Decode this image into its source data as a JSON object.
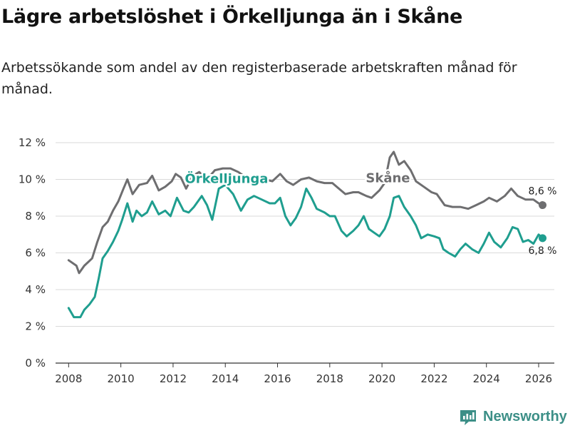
{
  "title": "Lägre arbetslöshet i Örkelljunga än i Skåne",
  "subtitle": "Arbetssökande som andel av den registerbaserade arbetskraften månad för månad.",
  "brand": {
    "name": "Newsworthy",
    "icon": "newsworthy-logo-icon",
    "color": "#3c8f87"
  },
  "chart_data": {
    "type": "line",
    "title": "Lägre arbetslöshet i Örkelljunga än i Skåne",
    "xlabel": "",
    "ylabel": "",
    "xlim": [
      2007.5,
      2026.6
    ],
    "ylim": [
      0,
      12
    ],
    "y_ticks": [
      0,
      2,
      4,
      6,
      8,
      10,
      12
    ],
    "y_tick_labels": [
      "0 %",
      "2 %",
      "4 %",
      "6 %",
      "8 %",
      "10 %",
      "12 %"
    ],
    "x_ticks": [
      2008,
      2010,
      2012,
      2014,
      2016,
      2018,
      2020,
      2022,
      2024,
      2026
    ],
    "x_tick_labels": [
      "2008",
      "2010",
      "2012",
      "2014",
      "2016",
      "2018",
      "2020",
      "2022",
      "2024",
      "2026"
    ],
    "grid": "horizontal",
    "series": [
      {
        "name": "Skåne",
        "color": "#6e6e70",
        "end_label": "8,6 %",
        "points": [
          [
            2008.0,
            5.6
          ],
          [
            2008.3,
            5.3
          ],
          [
            2008.4,
            4.9
          ],
          [
            2008.6,
            5.3
          ],
          [
            2008.9,
            5.7
          ],
          [
            2009.1,
            6.6
          ],
          [
            2009.3,
            7.4
          ],
          [
            2009.5,
            7.7
          ],
          [
            2009.7,
            8.3
          ],
          [
            2009.9,
            8.8
          ],
          [
            2010.1,
            9.5
          ],
          [
            2010.25,
            10.0
          ],
          [
            2010.45,
            9.2
          ],
          [
            2010.7,
            9.7
          ],
          [
            2011.0,
            9.8
          ],
          [
            2011.2,
            10.2
          ],
          [
            2011.45,
            9.4
          ],
          [
            2011.7,
            9.6
          ],
          [
            2011.95,
            9.9
          ],
          [
            2012.1,
            10.3
          ],
          [
            2012.3,
            10.1
          ],
          [
            2012.5,
            9.5
          ],
          [
            2012.75,
            10.2
          ],
          [
            2013.0,
            10.4
          ],
          [
            2013.3,
            10.0
          ],
          [
            2013.6,
            10.5
          ],
          [
            2013.9,
            10.6
          ],
          [
            2014.2,
            10.6
          ],
          [
            2014.5,
            10.4
          ],
          [
            2014.8,
            10.1
          ],
          [
            2015.0,
            9.9
          ],
          [
            2015.3,
            9.8
          ],
          [
            2015.5,
            10.0
          ],
          [
            2015.8,
            9.9
          ],
          [
            2016.1,
            10.3
          ],
          [
            2016.35,
            9.9
          ],
          [
            2016.6,
            9.7
          ],
          [
            2016.9,
            10.0
          ],
          [
            2017.2,
            10.1
          ],
          [
            2017.5,
            9.9
          ],
          [
            2017.8,
            9.8
          ],
          [
            2018.1,
            9.8
          ],
          [
            2018.35,
            9.5
          ],
          [
            2018.6,
            9.2
          ],
          [
            2018.9,
            9.3
          ],
          [
            2019.1,
            9.3
          ],
          [
            2019.4,
            9.1
          ],
          [
            2019.6,
            9.0
          ],
          [
            2019.9,
            9.4
          ],
          [
            2020.1,
            9.8
          ],
          [
            2020.3,
            11.2
          ],
          [
            2020.45,
            11.5
          ],
          [
            2020.65,
            10.8
          ],
          [
            2020.85,
            11.0
          ],
          [
            2021.1,
            10.5
          ],
          [
            2021.3,
            9.9
          ],
          [
            2021.6,
            9.6
          ],
          [
            2021.9,
            9.3
          ],
          [
            2022.1,
            9.2
          ],
          [
            2022.4,
            8.6
          ],
          [
            2022.7,
            8.5
          ],
          [
            2023.0,
            8.5
          ],
          [
            2023.3,
            8.4
          ],
          [
            2023.6,
            8.6
          ],
          [
            2023.9,
            8.8
          ],
          [
            2024.1,
            9.0
          ],
          [
            2024.4,
            8.8
          ],
          [
            2024.7,
            9.1
          ],
          [
            2024.95,
            9.5
          ],
          [
            2025.2,
            9.1
          ],
          [
            2025.5,
            8.9
          ],
          [
            2025.8,
            8.9
          ],
          [
            2026.0,
            8.7
          ],
          [
            2026.15,
            8.6
          ]
        ]
      },
      {
        "name": "Örkelljunga",
        "color": "#1f9e8f",
        "end_label": "6,8 %",
        "points": [
          [
            2008.0,
            3.0
          ],
          [
            2008.2,
            2.5
          ],
          [
            2008.45,
            2.5
          ],
          [
            2008.6,
            2.9
          ],
          [
            2008.8,
            3.2
          ],
          [
            2009.0,
            3.6
          ],
          [
            2009.15,
            4.6
          ],
          [
            2009.3,
            5.7
          ],
          [
            2009.5,
            6.1
          ],
          [
            2009.7,
            6.6
          ],
          [
            2009.9,
            7.2
          ],
          [
            2010.05,
            7.8
          ],
          [
            2010.25,
            8.7
          ],
          [
            2010.45,
            7.7
          ],
          [
            2010.6,
            8.3
          ],
          [
            2010.8,
            8.0
          ],
          [
            2011.0,
            8.2
          ],
          [
            2011.2,
            8.8
          ],
          [
            2011.45,
            8.1
          ],
          [
            2011.7,
            8.3
          ],
          [
            2011.9,
            8.0
          ],
          [
            2012.15,
            9.0
          ],
          [
            2012.4,
            8.3
          ],
          [
            2012.6,
            8.2
          ],
          [
            2012.8,
            8.5
          ],
          [
            2013.1,
            9.1
          ],
          [
            2013.3,
            8.6
          ],
          [
            2013.5,
            7.8
          ],
          [
            2013.75,
            9.5
          ],
          [
            2014.0,
            9.7
          ],
          [
            2014.3,
            9.2
          ],
          [
            2014.6,
            8.3
          ],
          [
            2014.85,
            8.9
          ],
          [
            2015.1,
            9.1
          ],
          [
            2015.4,
            8.9
          ],
          [
            2015.7,
            8.7
          ],
          [
            2015.9,
            8.7
          ],
          [
            2016.1,
            9.0
          ],
          [
            2016.3,
            8.0
          ],
          [
            2016.5,
            7.5
          ],
          [
            2016.7,
            7.9
          ],
          [
            2016.9,
            8.5
          ],
          [
            2017.1,
            9.5
          ],
          [
            2017.3,
            9.0
          ],
          [
            2017.5,
            8.4
          ],
          [
            2017.8,
            8.2
          ],
          [
            2018.0,
            8.0
          ],
          [
            2018.2,
            8.0
          ],
          [
            2018.45,
            7.2
          ],
          [
            2018.65,
            6.9
          ],
          [
            2018.9,
            7.2
          ],
          [
            2019.1,
            7.5
          ],
          [
            2019.3,
            8.0
          ],
          [
            2019.5,
            7.3
          ],
          [
            2019.7,
            7.1
          ],
          [
            2019.9,
            6.9
          ],
          [
            2020.1,
            7.3
          ],
          [
            2020.3,
            8.0
          ],
          [
            2020.45,
            9.0
          ],
          [
            2020.65,
            9.1
          ],
          [
            2020.85,
            8.5
          ],
          [
            2021.1,
            8.0
          ],
          [
            2021.3,
            7.5
          ],
          [
            2021.5,
            6.8
          ],
          [
            2021.75,
            7.0
          ],
          [
            2022.0,
            6.9
          ],
          [
            2022.2,
            6.8
          ],
          [
            2022.35,
            6.2
          ],
          [
            2022.55,
            6.0
          ],
          [
            2022.8,
            5.8
          ],
          [
            2023.0,
            6.2
          ],
          [
            2023.2,
            6.5
          ],
          [
            2023.45,
            6.2
          ],
          [
            2023.7,
            6.0
          ],
          [
            2023.9,
            6.5
          ],
          [
            2024.1,
            7.1
          ],
          [
            2024.3,
            6.6
          ],
          [
            2024.55,
            6.3
          ],
          [
            2024.8,
            6.8
          ],
          [
            2025.0,
            7.4
          ],
          [
            2025.2,
            7.3
          ],
          [
            2025.4,
            6.6
          ],
          [
            2025.6,
            6.7
          ],
          [
            2025.8,
            6.5
          ],
          [
            2026.0,
            7.0
          ],
          [
            2026.15,
            6.8
          ]
        ]
      }
    ]
  }
}
